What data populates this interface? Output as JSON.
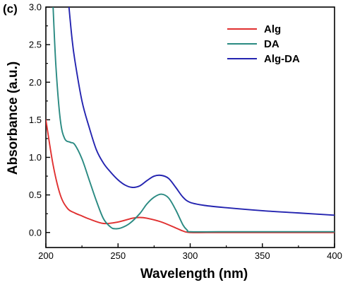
{
  "chart_data": {
    "type": "line",
    "panel_label": "(c)",
    "title": "",
    "xlabel": "Wavelength (nm)",
    "ylabel": "Absorbance (a.u.)",
    "xlim": [
      200,
      400
    ],
    "ylim": [
      -0.2,
      3.0
    ],
    "xticks": [
      200,
      250,
      300,
      350,
      400
    ],
    "yticks": [
      0.0,
      0.5,
      1.0,
      1.5,
      2.0,
      2.5,
      3.0
    ],
    "xtick_labels": [
      "200",
      "250",
      "300",
      "350",
      "400"
    ],
    "ytick_labels": [
      "0.0",
      "0.5",
      "1.0",
      "1.5",
      "2.0",
      "2.5",
      "3.0"
    ],
    "legend_position": "top-right",
    "grid": false,
    "series": [
      {
        "name": "Alg",
        "color": "#e03030",
        "x": [
          200,
          205,
          210,
          215,
          220,
          225,
          230,
          240,
          250,
          260,
          265,
          270,
          280,
          290,
          295,
          300,
          320,
          350,
          400
        ],
        "y": [
          1.5,
          0.9,
          0.5,
          0.32,
          0.26,
          0.22,
          0.18,
          0.12,
          0.14,
          0.19,
          0.2,
          0.19,
          0.14,
          0.06,
          0.02,
          0.0,
          0.0,
          0.0,
          0.0
        ]
      },
      {
        "name": "DA",
        "color": "#2a8a82",
        "x": [
          205,
          207,
          210,
          213,
          217,
          220,
          225,
          230,
          235,
          240,
          245,
          248,
          252,
          258,
          265,
          270,
          275,
          280,
          285,
          290,
          295,
          298,
          300,
          320,
          350,
          400
        ],
        "y": [
          3.0,
          2.2,
          1.5,
          1.25,
          1.2,
          1.17,
          0.98,
          0.7,
          0.42,
          0.18,
          0.07,
          0.05,
          0.06,
          0.12,
          0.25,
          0.38,
          0.47,
          0.51,
          0.46,
          0.3,
          0.1,
          0.03,
          0.01,
          0.01,
          0.01,
          0.01
        ]
      },
      {
        "name": "Alg-DA",
        "color": "#2424b0",
        "x": [
          216,
          218,
          220,
          225,
          230,
          235,
          240,
          245,
          250,
          255,
          260,
          265,
          270,
          275,
          280,
          285,
          290,
          295,
          300,
          310,
          325,
          350,
          375,
          400
        ],
        "y": [
          3.0,
          2.6,
          2.3,
          1.75,
          1.4,
          1.1,
          0.92,
          0.8,
          0.7,
          0.63,
          0.6,
          0.62,
          0.69,
          0.75,
          0.76,
          0.72,
          0.6,
          0.47,
          0.4,
          0.36,
          0.33,
          0.29,
          0.26,
          0.23
        ]
      }
    ]
  }
}
